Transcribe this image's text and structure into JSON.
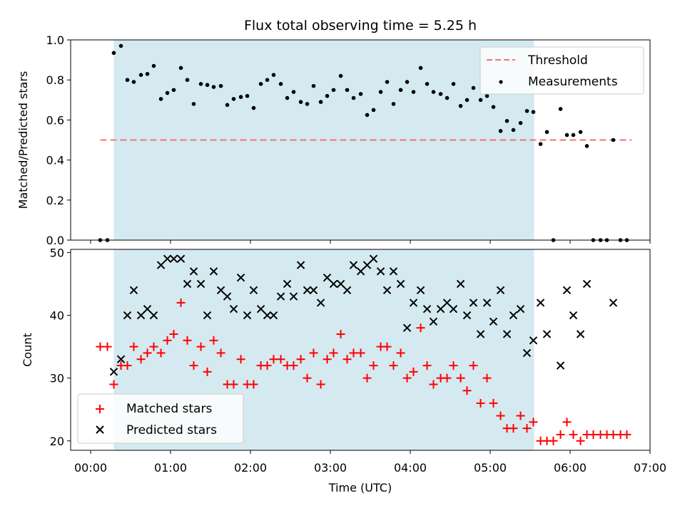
{
  "figure": {
    "title": "Flux total observing time = 5.25 h",
    "xlabel": "Time (UTC)"
  },
  "chart_data": [
    {
      "type": "scatter",
      "name": "ratio-panel",
      "ylabel": "Matched/Predicted stars",
      "xlim": [
        -0.25,
        7.0
      ],
      "ylim": [
        0.0,
        1.0
      ],
      "yticks": [
        "0.0",
        "0.2",
        "0.4",
        "0.6",
        "0.8",
        "1.0"
      ],
      "observing_window": [
        0.29,
        5.55
      ],
      "shade_color": "#d4eaf0",
      "threshold": {
        "name": "Threshold",
        "y": 0.5,
        "x": [
          0.12,
          6.77
        ],
        "color": "#f07575"
      },
      "legend_position": "upper right",
      "series": [
        {
          "name": "Measurements",
          "color": "#000000",
          "marker": "dot",
          "x": [
            0.12,
            0.21,
            0.29,
            0.38,
            0.46,
            0.54,
            0.63,
            0.71,
            0.79,
            0.88,
            0.96,
            1.04,
            1.13,
            1.21,
            1.29,
            1.38,
            1.46,
            1.54,
            1.63,
            1.71,
            1.79,
            1.88,
            1.96,
            2.04,
            2.13,
            2.21,
            2.29,
            2.38,
            2.46,
            2.54,
            2.63,
            2.71,
            2.79,
            2.88,
            2.96,
            3.04,
            3.13,
            3.21,
            3.29,
            3.38,
            3.46,
            3.54,
            3.63,
            3.71,
            3.79,
            3.88,
            3.96,
            4.04,
            4.13,
            4.21,
            4.29,
            4.38,
            4.46,
            4.54,
            4.63,
            4.71,
            4.79,
            4.88,
            4.96,
            5.04,
            5.13,
            5.21,
            5.29,
            5.38,
            5.46,
            5.54,
            5.63,
            5.71,
            5.79,
            5.88,
            5.96,
            6.04,
            6.13,
            6.21,
            6.29,
            6.38,
            6.46,
            6.54,
            6.63,
            6.71
          ],
          "y": [
            0.0,
            0.0,
            0.935,
            0.97,
            0.8,
            0.79,
            0.825,
            0.83,
            0.87,
            0.705,
            0.735,
            0.75,
            0.86,
            0.8,
            0.68,
            0.78,
            0.775,
            0.765,
            0.77,
            0.675,
            0.705,
            0.715,
            0.72,
            0.66,
            0.78,
            0.8,
            0.825,
            0.78,
            0.71,
            0.74,
            0.69,
            0.68,
            0.77,
            0.69,
            0.72,
            0.75,
            0.82,
            0.75,
            0.71,
            0.73,
            0.625,
            0.65,
            0.74,
            0.79,
            0.68,
            0.75,
            0.79,
            0.74,
            0.86,
            0.78,
            0.74,
            0.73,
            0.71,
            0.78,
            0.67,
            0.7,
            0.76,
            0.7,
            0.72,
            0.665,
            0.545,
            0.595,
            0.55,
            0.585,
            0.645,
            0.64,
            0.48,
            0.54,
            0.0,
            0.655,
            0.525,
            0.525,
            0.54,
            0.47,
            0.0,
            0.0,
            0.0,
            0.5,
            0.0,
            0.0
          ]
        }
      ]
    },
    {
      "type": "scatter",
      "name": "count-panel",
      "ylabel": "Count",
      "xlim": [
        -0.25,
        7.0
      ],
      "ylim": [
        18.5,
        50.5
      ],
      "yticks": [
        "20",
        "30",
        "40",
        "50"
      ],
      "xticks": [
        "00:00",
        "01:00",
        "02:00",
        "03:00",
        "04:00",
        "05:00",
        "06:00",
        "07:00"
      ],
      "observing_window": [
        0.29,
        5.55
      ],
      "shade_color": "#d4eaf0",
      "legend_position": "lower left",
      "series": [
        {
          "name": "Matched stars",
          "color": "#ff0000",
          "marker": "plus",
          "x": [
            0.12,
            0.21,
            0.29,
            0.38,
            0.46,
            0.54,
            0.63,
            0.71,
            0.79,
            0.88,
            0.96,
            1.04,
            1.13,
            1.21,
            1.29,
            1.38,
            1.46,
            1.54,
            1.63,
            1.71,
            1.79,
            1.88,
            1.96,
            2.04,
            2.13,
            2.21,
            2.29,
            2.38,
            2.46,
            2.54,
            2.63,
            2.71,
            2.79,
            2.88,
            2.96,
            3.04,
            3.13,
            3.21,
            3.29,
            3.38,
            3.46,
            3.54,
            3.63,
            3.71,
            3.79,
            3.88,
            3.96,
            4.04,
            4.13,
            4.21,
            4.29,
            4.38,
            4.46,
            4.54,
            4.63,
            4.71,
            4.79,
            4.88,
            4.96,
            5.04,
            5.13,
            5.21,
            5.29,
            5.38,
            5.46,
            5.54,
            5.63,
            5.71,
            5.79,
            5.88,
            5.96,
            6.04,
            6.13,
            6.21,
            6.29,
            6.38,
            6.46,
            6.54,
            6.63,
            6.71
          ],
          "y": [
            35,
            35,
            29,
            32,
            32,
            35,
            33,
            34,
            35,
            34,
            36,
            37,
            42,
            36,
            32,
            35,
            31,
            36,
            34,
            29,
            29,
            33,
            29,
            29,
            32,
            32,
            33,
            33,
            32,
            32,
            33,
            30,
            34,
            29,
            33,
            34,
            37,
            33,
            34,
            34,
            30,
            32,
            35,
            35,
            32,
            34,
            30,
            31,
            38,
            32,
            29,
            30,
            30,
            32,
            30,
            28,
            32,
            26,
            30,
            26,
            24,
            22,
            22,
            24,
            22,
            23,
            20,
            20,
            20,
            21,
            23,
            21,
            20,
            21,
            21,
            21,
            21,
            21,
            21,
            21
          ]
        },
        {
          "name": "Predicted stars",
          "color": "#000000",
          "marker": "x",
          "x": [
            0.29,
            0.38,
            0.46,
            0.54,
            0.63,
            0.71,
            0.79,
            0.88,
            0.96,
            1.04,
            1.13,
            1.21,
            1.29,
            1.38,
            1.46,
            1.54,
            1.63,
            1.71,
            1.79,
            1.88,
            1.96,
            2.04,
            2.13,
            2.21,
            2.29,
            2.38,
            2.46,
            2.54,
            2.63,
            2.71,
            2.79,
            2.88,
            2.96,
            3.04,
            3.13,
            3.21,
            3.29,
            3.38,
            3.46,
            3.54,
            3.63,
            3.71,
            3.79,
            3.88,
            3.96,
            4.04,
            4.13,
            4.21,
            4.29,
            4.38,
            4.46,
            4.54,
            4.63,
            4.71,
            4.79,
            4.88,
            4.96,
            5.04,
            5.13,
            5.21,
            5.29,
            5.38,
            5.46,
            5.54,
            5.63,
            5.71,
            5.88,
            5.96,
            6.04,
            6.13,
            6.21,
            6.54
          ],
          "y": [
            31,
            33,
            40,
            44,
            40,
            41,
            40,
            48,
            49,
            49,
            49,
            45,
            47,
            45,
            40,
            47,
            44,
            43,
            41,
            46,
            40,
            44,
            41,
            40,
            40,
            43,
            45,
            43,
            48,
            44,
            44,
            42,
            46,
            45,
            45,
            44,
            48,
            47,
            48,
            49,
            47,
            44,
            47,
            45,
            38,
            42,
            44,
            41,
            39,
            41,
            42,
            41,
            45,
            40,
            42,
            37,
            42,
            39,
            44,
            37,
            40,
            41,
            34,
            36,
            42,
            37,
            32,
            44,
            40,
            37,
            45,
            42
          ]
        }
      ]
    }
  ]
}
